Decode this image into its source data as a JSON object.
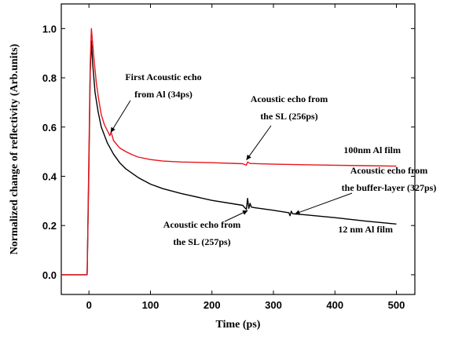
{
  "chart_data": {
    "type": "line",
    "title": "",
    "xlabel": "Time (ps)",
    "ylabel": "Normalized change of reflectivity (Arb.units)",
    "xlim": [
      -45,
      530
    ],
    "ylim": [
      -0.08,
      1.1
    ],
    "xticks": [
      0,
      100,
      200,
      300,
      400,
      500
    ],
    "yticks": [
      0.0,
      0.2,
      0.4,
      0.6,
      0.8,
      1.0
    ],
    "ytick_labels": [
      "0.0",
      "0.2",
      "0.4",
      "0.6",
      "0.8",
      "1.0"
    ],
    "grid": false,
    "series": [
      {
        "name": "100nm Al film",
        "color": "#e8141c",
        "x": [
          -45,
          -3,
          0,
          2,
          4,
          8,
          12,
          16,
          20,
          25,
          30,
          34,
          36,
          40,
          50,
          60,
          70,
          80,
          100,
          120,
          150,
          200,
          250,
          256,
          258,
          262,
          300,
          350,
          400,
          450,
          500
        ],
        "y": [
          0.0,
          0.0,
          0.5,
          0.85,
          1.0,
          0.88,
          0.78,
          0.71,
          0.65,
          0.61,
          0.585,
          0.565,
          0.58,
          0.545,
          0.515,
          0.5,
          0.488,
          0.478,
          0.468,
          0.462,
          0.458,
          0.455,
          0.451,
          0.445,
          0.458,
          0.452,
          0.449,
          0.447,
          0.445,
          0.443,
          0.441
        ]
      },
      {
        "name": "12 nm Al film",
        "color": "#000000",
        "x": [
          -45,
          -3,
          0,
          2,
          4,
          6,
          10,
          15,
          20,
          30,
          40,
          50,
          60,
          80,
          100,
          120,
          150,
          200,
          250,
          256,
          258,
          260,
          262,
          264,
          270,
          300,
          325,
          327,
          329,
          331,
          350,
          400,
          450,
          500
        ],
        "y": [
          0.0,
          0.0,
          0.45,
          0.82,
          0.95,
          0.86,
          0.74,
          0.66,
          0.6,
          0.535,
          0.49,
          0.455,
          0.43,
          0.395,
          0.368,
          0.35,
          0.33,
          0.302,
          0.282,
          0.265,
          0.31,
          0.27,
          0.29,
          0.275,
          0.272,
          0.262,
          0.252,
          0.24,
          0.258,
          0.248,
          0.244,
          0.232,
          0.218,
          0.206
        ]
      }
    ],
    "legend_labels": [
      {
        "text": "100nm Al film"
      },
      {
        "text": "12 nm Al film"
      }
    ],
    "annotations": [
      {
        "lines": [
          "First Acoustic echo",
          "from Al (34ps)"
        ],
        "target": [
          34,
          0.565
        ]
      },
      {
        "lines": [
          "Acoustic echo from",
          "the SL (256ps)"
        ],
        "target": [
          256,
          0.45
        ]
      },
      {
        "lines": [
          "Acoustic echo from",
          "the buffer-layer  (327ps)"
        ],
        "target": [
          327,
          0.25
        ]
      },
      {
        "lines": [
          "Acoustic echo from",
          "the SL (257ps)"
        ],
        "target": [
          257,
          0.28
        ]
      }
    ]
  }
}
